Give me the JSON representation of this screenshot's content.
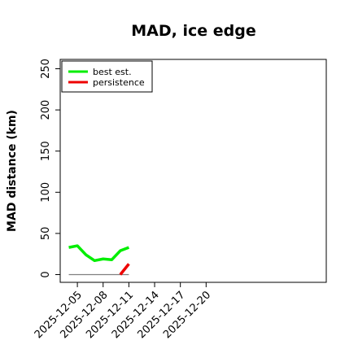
{
  "chart_data": {
    "type": "line",
    "title": "MAD, ice edge",
    "xlabel": "",
    "ylabel": "MAD distance (km)",
    "xlim": [
      "2025-12-03",
      "2026-01-03"
    ],
    "ylim": [
      0,
      250
    ],
    "yticks": [
      0,
      50,
      100,
      150,
      200,
      250
    ],
    "xticks": [
      "2025-12-05",
      "2025-12-08",
      "2025-12-11",
      "2025-12-14",
      "2025-12-17",
      "2025-12-20"
    ],
    "legend_position": "top-left",
    "grid": false,
    "series": [
      {
        "name": "best est.",
        "color": "#00ee00",
        "x": [
          "2025-12-04",
          "2025-12-05",
          "2025-12-06",
          "2025-12-07",
          "2025-12-08",
          "2025-12-09",
          "2025-12-10",
          "2025-12-11"
        ],
        "y": [
          33,
          35,
          24,
          17,
          19,
          18,
          29,
          33
        ]
      },
      {
        "name": "persistence",
        "color": "#ee0000",
        "x": [
          "2025-12-10",
          "2025-12-11"
        ],
        "y": [
          0,
          13
        ]
      }
    ],
    "baseline": {
      "color": "#808080",
      "x": [
        "2025-12-04",
        "2025-12-11"
      ],
      "y": [
        0,
        0
      ]
    }
  }
}
